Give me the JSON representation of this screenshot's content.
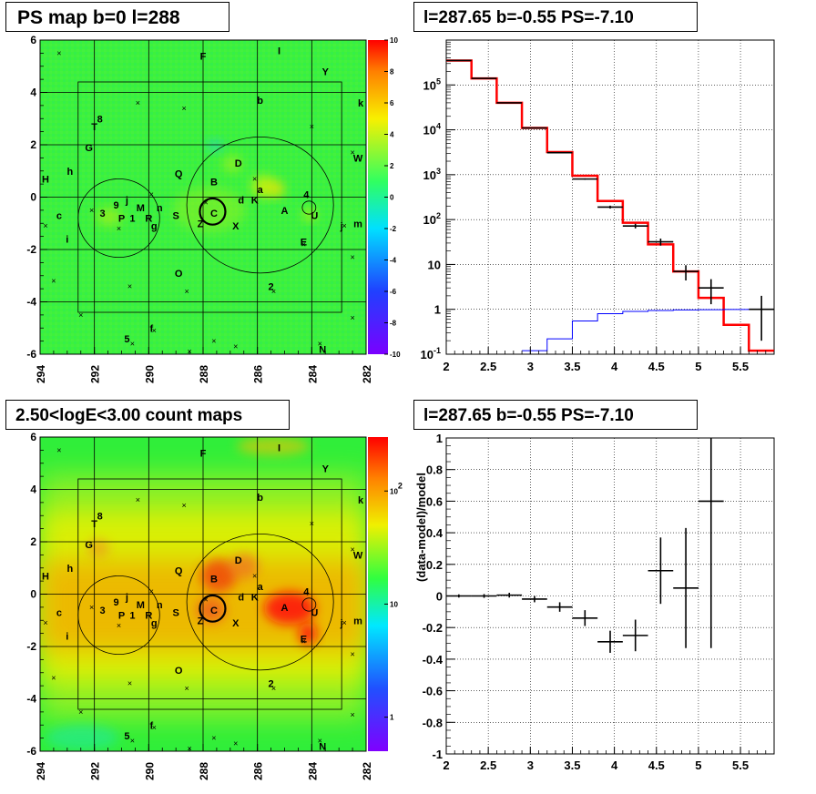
{
  "titles": {
    "ps_map": "PS map b=0 l=288",
    "spectrum": "l=287.65 b=-0.55 PS=-7.10",
    "count_map": "2.50<logE<3.00 count maps",
    "residual": "l=287.65 b=-0.55 PS=-7.10"
  },
  "colors": {
    "model_line": "#ff0000",
    "background_line": "#0000ff",
    "data_points": "#000000",
    "grid": "#000000"
  },
  "chart_data": [
    {
      "id": "ps_map",
      "type": "heatmap",
      "title": "PS map b=0 l=288",
      "xlim": [
        294,
        282
      ],
      "ylim": [
        -6,
        6
      ],
      "x_ticks": [
        "294",
        "292",
        "290",
        "288",
        "286",
        "284",
        "282"
      ],
      "y_ticks": [
        "6",
        "4",
        "2",
        "0",
        "-2",
        "-4",
        "-6"
      ],
      "colorbar": {
        "range": [
          -10,
          10
        ],
        "scale": "linear",
        "ticks": [
          "10",
          "8",
          "6",
          "4",
          "2",
          "0",
          "-2",
          "-4",
          "-6",
          "-8",
          "-10"
        ]
      },
      "labels": [
        {
          "text": "F",
          "l": 288.0,
          "b": 5.4
        },
        {
          "text": "I",
          "l": 285.2,
          "b": 5.6
        },
        {
          "text": "Y",
          "l": 283.5,
          "b": 4.8
        },
        {
          "text": "b",
          "l": 285.9,
          "b": 3.7
        },
        {
          "text": "k",
          "l": 282.2,
          "b": 3.6
        },
        {
          "text": "T",
          "l": 292.0,
          "b": 2.7
        },
        {
          "text": "8",
          "l": 291.8,
          "b": 3.0
        },
        {
          "text": "G",
          "l": 292.2,
          "b": 1.9
        },
        {
          "text": "W",
          "l": 282.3,
          "b": 1.5
        },
        {
          "text": "h",
          "l": 292.9,
          "b": 1.0
        },
        {
          "text": "D",
          "l": 286.7,
          "b": 1.3
        },
        {
          "text": "H",
          "l": 293.8,
          "b": 0.7
        },
        {
          "text": "Q",
          "l": 288.9,
          "b": 0.9
        },
        {
          "text": "B",
          "l": 287.6,
          "b": 0.6
        },
        {
          "text": "a",
          "l": 285.9,
          "b": 0.3
        },
        {
          "text": "d",
          "l": 286.6,
          "b": -0.1
        },
        {
          "text": "K",
          "l": 286.1,
          "b": -0.1
        },
        {
          "text": "4",
          "l": 284.2,
          "b": 0.1
        },
        {
          "text": "A",
          "l": 285.0,
          "b": -0.5
        },
        {
          "text": "U",
          "l": 283.9,
          "b": -0.7
        },
        {
          "text": "c",
          "l": 293.3,
          "b": -0.7
        },
        {
          "text": "3",
          "l": 291.7,
          "b": -0.6
        },
        {
          "text": "9",
          "l": 291.2,
          "b": -0.3
        },
        {
          "text": "j",
          "l": 290.8,
          "b": -0.1
        },
        {
          "text": "P",
          "l": 291.0,
          "b": -0.8
        },
        {
          "text": "1",
          "l": 290.6,
          "b": -0.8
        },
        {
          "text": "M",
          "l": 290.3,
          "b": -0.4
        },
        {
          "text": "R",
          "l": 290.0,
          "b": -0.8
        },
        {
          "text": "n",
          "l": 289.6,
          "b": -0.4
        },
        {
          "text": "g",
          "l": 289.8,
          "b": -1.1
        },
        {
          "text": "S",
          "l": 289.0,
          "b": -0.7
        },
        {
          "text": "Z",
          "l": 288.1,
          "b": -1.0
        },
        {
          "text": "C",
          "l": 287.6,
          "b": -0.6
        },
        {
          "text": "X",
          "l": 286.8,
          "b": -1.1
        },
        {
          "text": "j",
          "l": 282.9,
          "b": -1.1
        },
        {
          "text": "m",
          "l": 282.3,
          "b": -1.0
        },
        {
          "text": "E",
          "l": 284.3,
          "b": -1.7
        },
        {
          "text": "i",
          "l": 293.0,
          "b": -1.6
        },
        {
          "text": "O",
          "l": 288.9,
          "b": -2.9
        },
        {
          "text": "2",
          "l": 285.5,
          "b": -3.4
        },
        {
          "text": "f",
          "l": 289.9,
          "b": -5.0
        },
        {
          "text": "5",
          "l": 290.8,
          "b": -5.4
        },
        {
          "text": "N",
          "l": 283.6,
          "b": -5.8
        }
      ]
    },
    {
      "id": "spectrum",
      "type": "line",
      "title": "l=287.65 b=-0.55 PS=-7.10",
      "xlim": [
        2,
        5.9
      ],
      "ylim": [
        0.1,
        1000000
      ],
      "yscale": "log",
      "grid": true,
      "x_ticks": [
        "2",
        "2.5",
        "3",
        "3.5",
        "4",
        "4.5",
        "5",
        "5.5"
      ],
      "y_ticks": [
        "10^5",
        "10^4",
        "10^3",
        "10^2",
        "10",
        "1",
        "10^-1"
      ],
      "series": [
        {
          "style": "step",
          "color": "#ff0000",
          "bin_edges": [
            2.0,
            2.3,
            2.6,
            2.9,
            3.2,
            3.5,
            3.8,
            4.1,
            4.4,
            4.7,
            5.0,
            5.3,
            5.6,
            5.9
          ],
          "values": [
            350000,
            140000,
            40000,
            11000,
            3200,
            950,
            260,
            85,
            28,
            7,
            1.8,
            0.45,
            0.12
          ]
        },
        {
          "style": "step",
          "color": "#0000ff",
          "bin_edges": [
            2.9,
            3.2,
            3.5,
            3.8,
            4.1,
            4.4,
            4.7,
            5.0,
            5.3,
            5.6,
            5.9
          ],
          "values": [
            0.12,
            0.22,
            0.55,
            0.8,
            0.9,
            0.94,
            0.97,
            0.98,
            0.99,
            1.0
          ]
        },
        {
          "style": "points",
          "color": "#000000",
          "x": [
            2.15,
            2.45,
            2.75,
            3.05,
            3.35,
            3.65,
            3.95,
            4.25,
            4.55,
            4.85,
            5.15,
            5.75
          ],
          "xerr": 0.15,
          "y": [
            350000,
            140000,
            40000,
            11000,
            3100,
            800,
            190,
            72,
            32,
            7,
            3,
            1
          ],
          "yerr_low": [
            600,
            380,
            200,
            100,
            55,
            28,
            14,
            8.5,
            5.7,
            2.6,
            1.7,
            0.8
          ],
          "yerr_high": [
            600,
            380,
            200,
            100,
            55,
            28,
            14,
            8.5,
            5.7,
            2.6,
            1.7,
            1.0
          ]
        }
      ]
    },
    {
      "id": "count_map",
      "type": "heatmap",
      "title": "2.50<logE<3.00 count maps",
      "xlim": [
        294,
        282
      ],
      "ylim": [
        -6,
        6
      ],
      "x_ticks": [
        "294",
        "292",
        "290",
        "288",
        "286",
        "284",
        "282"
      ],
      "y_ticks": [
        "6",
        "4",
        "2",
        "0",
        "-2",
        "-4",
        "-6"
      ],
      "colorbar": {
        "range": [
          0.5,
          300
        ],
        "scale": "log",
        "ticks": [
          "10^2",
          "10",
          "1"
        ]
      }
    },
    {
      "id": "residual",
      "type": "scatter",
      "title": "l=287.65 b=-0.55 PS=-7.10",
      "ylabel": "(data-model)/model",
      "xlim": [
        2,
        5.9
      ],
      "ylim": [
        -1,
        1
      ],
      "grid": true,
      "x_ticks": [
        "2",
        "2.5",
        "3",
        "3.5",
        "4",
        "4.5",
        "5",
        "5.5"
      ],
      "y_ticks": [
        "1",
        "0.8",
        "0.6",
        "0.4",
        "0.2",
        "0",
        "-0.2",
        "-0.4",
        "-0.6",
        "-0.8",
        "-1"
      ],
      "points": {
        "x": [
          2.15,
          2.45,
          2.75,
          3.05,
          3.35,
          3.65,
          3.95,
          4.25,
          4.55,
          4.85,
          5.15
        ],
        "xerr": 0.15,
        "y": [
          0.0,
          0.0,
          0.005,
          -0.02,
          -0.07,
          -0.14,
          -0.29,
          -0.25,
          0.16,
          0.05,
          0.6
        ],
        "yerr": [
          0.01,
          0.012,
          0.015,
          0.02,
          0.03,
          0.05,
          0.07,
          0.1,
          0.21,
          0.38,
          0.93
        ]
      }
    }
  ]
}
